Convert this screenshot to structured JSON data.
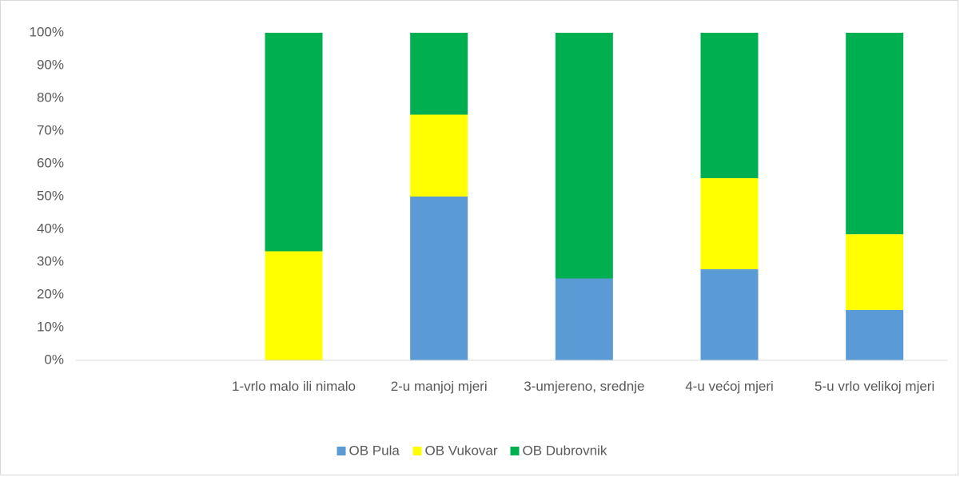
{
  "chart_data": {
    "type": "stacked_bar",
    "categories": [
      null,
      "1-vrlo malo ili nimalo",
      "2-u manjoj mjeri",
      "3-umjereno, srednje",
      "4-u većoj mjeri",
      "5-u vrlo velikoj mjeri"
    ],
    "series": [
      {
        "name": "OB Pula",
        "color": "#5b9bd5",
        "values": [
          null,
          0,
          50,
          25,
          27.8,
          15.4
        ]
      },
      {
        "name": "OB Vukovar",
        "color": "#ffff00",
        "values": [
          null,
          33.3,
          25,
          0,
          27.8,
          23.1
        ]
      },
      {
        "name": "OB Dubrovnik",
        "color": "#00b050",
        "values": [
          null,
          66.7,
          25,
          75,
          44.4,
          61.5
        ]
      }
    ],
    "ylim": [
      0,
      100
    ],
    "yticks": [
      {
        "value": 0,
        "label": "0%"
      },
      {
        "value": 10,
        "label": "10%"
      },
      {
        "value": 20,
        "label": "20%"
      },
      {
        "value": 30,
        "label": "30%"
      },
      {
        "value": 40,
        "label": "40%"
      },
      {
        "value": 50,
        "label": "50%"
      },
      {
        "value": 60,
        "label": "60%"
      },
      {
        "value": 70,
        "label": "70%"
      },
      {
        "value": 80,
        "label": "80%"
      },
      {
        "value": 90,
        "label": "90%"
      },
      {
        "value": 100,
        "label": "100%"
      }
    ],
    "legend": "bottom"
  }
}
